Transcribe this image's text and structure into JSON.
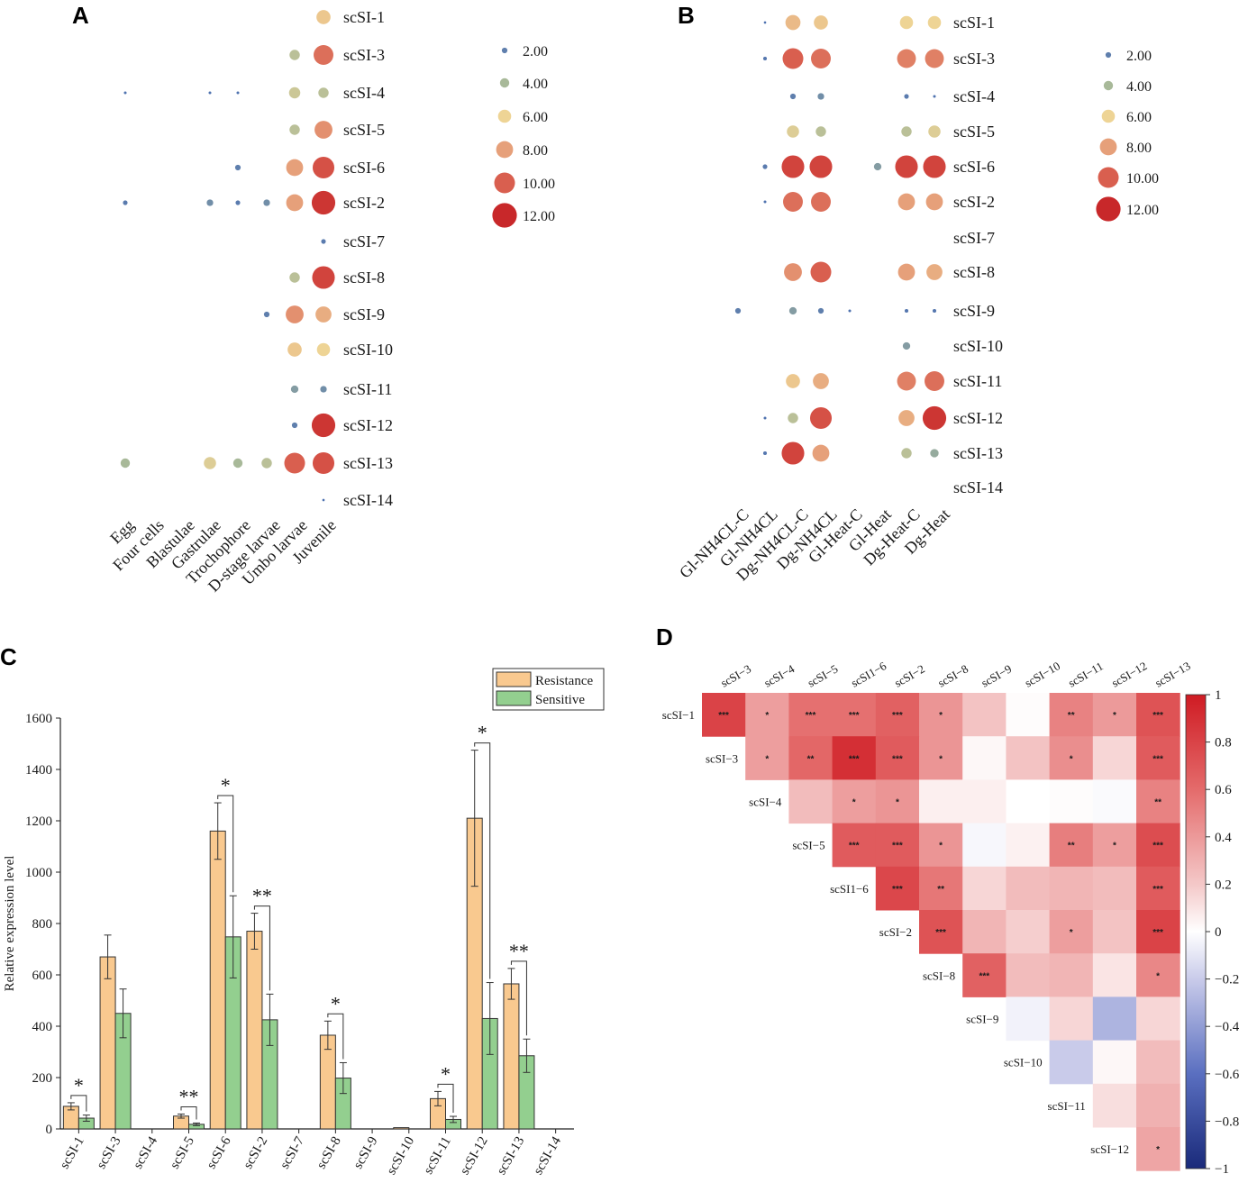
{
  "panels": {
    "A": "A",
    "B": "B",
    "C": "C",
    "D": "D"
  },
  "chart_data": [
    {
      "panel": "A",
      "type": "scatter",
      "title": "",
      "size_legend": [
        "2.00",
        "4.00",
        "6.00",
        "8.00",
        "10.00",
        "12.00"
      ],
      "x_labels": [
        "Egg",
        "Four cells",
        "Blastulae",
        "Gastrulae",
        "Trochophore",
        "D-stage larvae",
        "Umbo larvae",
        "Juvenile"
      ],
      "genes": [
        "scSI-1",
        "scSI-3",
        "scSI-4",
        "scSI-5",
        "scSI-6",
        "scSI-2",
        "scSI-7",
        "scSI-8",
        "scSI-9",
        "scSI-10",
        "scSI-11",
        "scSI-12",
        "scSI-13",
        "scSI-14"
      ],
      "values": [
        [
          0,
          0,
          0,
          0,
          0,
          0,
          0,
          6.5
        ],
        [
          0,
          0,
          0,
          0,
          0,
          0,
          4.5,
          9.5
        ],
        [
          0.5,
          0,
          0,
          0.5,
          0.5,
          0,
          5,
          4.5
        ],
        [
          0,
          0,
          0,
          0,
          0,
          0,
          4.5,
          8.5
        ],
        [
          0,
          0,
          0,
          0,
          2,
          0,
          8,
          10.5
        ],
        [
          1.5,
          0,
          0,
          2.5,
          1.5,
          2.5,
          8,
          11.5
        ],
        [
          0,
          0,
          0,
          0,
          0,
          0,
          0,
          1.5
        ],
        [
          0,
          0,
          0,
          0,
          0,
          0,
          4.5,
          11
        ],
        [
          0,
          0,
          0,
          0,
          0,
          2,
          8.5,
          7.5
        ],
        [
          0,
          0,
          0,
          0,
          0,
          0,
          6.5,
          6
        ],
        [
          0,
          0,
          0,
          0,
          0,
          0,
          3,
          2.5
        ],
        [
          0,
          0,
          0,
          0,
          0,
          0,
          2,
          11.5
        ],
        [
          4,
          0,
          0,
          5.5,
          4,
          4.5,
          10,
          10.5
        ],
        [
          0,
          0,
          0,
          0,
          0,
          0,
          0,
          0.3
        ]
      ]
    },
    {
      "panel": "B",
      "type": "scatter",
      "title": "",
      "size_legend": [
        "2.00",
        "4.00",
        "6.00",
        "8.00",
        "10.00",
        "12.00"
      ],
      "x_labels": [
        "Gl-NH4CL-C",
        "Gl-NH4CL",
        "Dg-NH4CL-C",
        "Dg-NH4CL",
        "Gl-Heat-C",
        "Gl-Heat",
        "Dg-Heat-C",
        "Dg-Heat"
      ],
      "genes": [
        "scSI-1",
        "scSI-3",
        "scSI-4",
        "scSI-5",
        "scSI-6",
        "scSI-2",
        "scSI-7",
        "scSI-8",
        "scSI-9",
        "scSI-10",
        "scSI-11",
        "scSI-12",
        "scSI-13",
        "scSI-14"
      ],
      "values": [
        [
          0,
          0.3,
          7,
          6.5,
          0,
          0,
          6,
          6
        ],
        [
          0,
          1,
          10,
          9.5,
          0,
          0,
          9,
          9
        ],
        [
          0,
          0,
          2,
          2.5,
          0,
          0,
          1.5,
          0.5
        ],
        [
          0,
          0,
          5.5,
          4.5,
          0,
          0,
          4.5,
          5.5
        ],
        [
          0,
          1.5,
          11,
          11,
          0,
          3,
          11,
          11
        ],
        [
          0,
          0.5,
          9.5,
          9.5,
          0,
          0,
          8,
          8
        ],
        [
          0,
          0,
          0,
          0,
          0,
          0,
          0,
          0
        ],
        [
          0,
          0,
          8.5,
          10,
          0,
          0,
          8,
          7.5
        ],
        [
          2,
          0,
          3,
          2,
          0.5,
          0,
          1,
          1
        ],
        [
          0,
          0,
          0,
          0,
          0,
          0,
          3,
          0
        ],
        [
          0,
          0,
          6.5,
          7.5,
          0,
          0,
          9,
          9.5
        ],
        [
          0,
          0.5,
          4.5,
          10.5,
          0,
          0,
          7.5,
          11.5
        ],
        [
          0,
          1,
          11,
          8,
          0,
          0,
          4.5,
          3.5
        ],
        [
          0,
          0,
          0,
          0,
          0,
          0,
          0,
          0
        ]
      ]
    },
    {
      "panel": "C",
      "type": "bar",
      "ylabel": "Relative expression level",
      "ylim": [
        0,
        1600
      ],
      "yticks": [
        "0",
        "200",
        "400",
        "600",
        "800",
        "1000",
        "1200",
        "1400",
        "1600"
      ],
      "categories": [
        "scSI-1",
        "scSI-3",
        "scSI-4",
        "scSI-5",
        "scSI-6",
        "scSI-2",
        "scSI-7",
        "scSI-8",
        "scSI-9",
        "scSI-10",
        "scSI-11",
        "scSI-12",
        "scSI-13",
        "scSI-14"
      ],
      "series": [
        {
          "name": "Resistance",
          "color": "#f9c98f",
          "values": [
            88,
            670,
            0,
            50,
            1160,
            770,
            0,
            365,
            0,
            5,
            118,
            1210,
            565,
            0
          ],
          "errors": [
            14,
            85,
            0,
            8,
            110,
            70,
            0,
            55,
            0,
            0,
            28,
            265,
            60,
            0
          ]
        },
        {
          "name": "Sensitive",
          "color": "#93cf8f",
          "values": [
            42,
            450,
            0,
            18,
            748,
            425,
            0,
            198,
            0,
            0,
            37,
            430,
            285,
            0
          ],
          "errors": [
            12,
            95,
            0,
            5,
            160,
            100,
            0,
            60,
            0,
            0,
            12,
            140,
            65,
            0
          ]
        }
      ],
      "significance": [
        {
          "category": "scSI-1",
          "label": "*"
        },
        {
          "category": "scSI-5",
          "label": "**"
        },
        {
          "category": "scSI-6",
          "label": "*"
        },
        {
          "category": "scSI-2",
          "label": "**"
        },
        {
          "category": "scSI-8",
          "label": "*"
        },
        {
          "category": "scSI-11",
          "label": "*"
        },
        {
          "category": "scSI-12",
          "label": "*"
        },
        {
          "category": "scSI-13",
          "label": "**"
        }
      ]
    },
    {
      "panel": "D",
      "type": "heatmap",
      "col_labels": [
        "scSI−3",
        "scSI−4",
        "scSI−5",
        "scSI1−6",
        "scSI−2",
        "scSI−8",
        "scSI−9",
        "scSI−10",
        "scSI−11",
        "scSI−12",
        "scSI−13"
      ],
      "row_labels": [
        "scSI−1",
        "scSI−3",
        "scSI−4",
        "scSI−5",
        "scSI1−6",
        "scSI−2",
        "scSI−8",
        "scSI−9",
        "scSI−10",
        "scSI−11",
        "scSI−12"
      ],
      "colorbar_ticks": [
        "1",
        "0.8",
        "0.6",
        "0.4",
        "0.2",
        "0",
        "−0.2",
        "−0.4",
        "−0.6",
        "−0.8",
        "−1"
      ],
      "values": [
        [
          0.8,
          0.38,
          0.58,
          0.58,
          0.65,
          0.42,
          0.22,
          0.01,
          0.5,
          0.4,
          0.72
        ],
        [
          null,
          0.38,
          0.62,
          0.9,
          0.68,
          0.42,
          0.03,
          0.22,
          0.45,
          0.15,
          0.68
        ],
        [
          null,
          null,
          0.25,
          0.38,
          0.42,
          0.06,
          0.06,
          0.0,
          0.01,
          -0.02,
          0.5
        ],
        [
          null,
          null,
          null,
          0.68,
          0.68,
          0.42,
          -0.03,
          0.05,
          0.52,
          0.38,
          0.75
        ],
        [
          null,
          null,
          null,
          null,
          0.78,
          0.55,
          0.15,
          0.25,
          0.28,
          0.25,
          0.68
        ],
        [
          null,
          null,
          null,
          null,
          null,
          0.72,
          0.28,
          0.18,
          0.38,
          0.22,
          0.8
        ],
        [
          null,
          null,
          null,
          null,
          null,
          null,
          0.65,
          0.25,
          0.28,
          0.1,
          0.48
        ],
        [
          null,
          null,
          null,
          null,
          null,
          null,
          null,
          -0.05,
          0.15,
          -0.3,
          0.15
        ],
        [
          null,
          null,
          null,
          null,
          null,
          null,
          null,
          null,
          -0.2,
          0.03,
          0.25
        ],
        [
          null,
          null,
          null,
          null,
          null,
          null,
          null,
          null,
          null,
          0.12,
          0.3
        ],
        [
          null,
          null,
          null,
          null,
          null,
          null,
          null,
          null,
          null,
          null,
          0.35
        ]
      ],
      "stars": [
        [
          "***",
          "*",
          "***",
          "***",
          "***",
          "*",
          "",
          "",
          "**",
          "*",
          "***"
        ],
        [
          "",
          "*",
          "**",
          "***",
          "***",
          "*",
          "",
          "",
          "*",
          "",
          "***"
        ],
        [
          "",
          "",
          "",
          "*",
          "*",
          "",
          "",
          "",
          "",
          "",
          "**"
        ],
        [
          "",
          "",
          "",
          "***",
          "***",
          "*",
          "",
          "",
          "**",
          "*",
          "***"
        ],
        [
          "",
          "",
          "",
          "",
          "***",
          "**",
          "",
          "",
          "",
          "",
          "***"
        ],
        [
          "",
          "",
          "",
          "",
          "",
          "***",
          "",
          "",
          "*",
          "",
          "***"
        ],
        [
          "",
          "",
          "",
          "",
          "",
          "",
          "***",
          "",
          "",
          "",
          "*"
        ],
        [
          "",
          "",
          "",
          "",
          "",
          "",
          "",
          "",
          "",
          "",
          ""
        ],
        [
          "",
          "",
          "",
          "",
          "",
          "",
          "",
          "",
          "",
          "",
          ""
        ],
        [
          "",
          "",
          "",
          "",
          "",
          "",
          "",
          "",
          "",
          "",
          ""
        ],
        [
          "",
          "",
          "",
          "",
          "",
          "",
          "",
          "",
          "",
          "",
          "*"
        ]
      ]
    }
  ]
}
